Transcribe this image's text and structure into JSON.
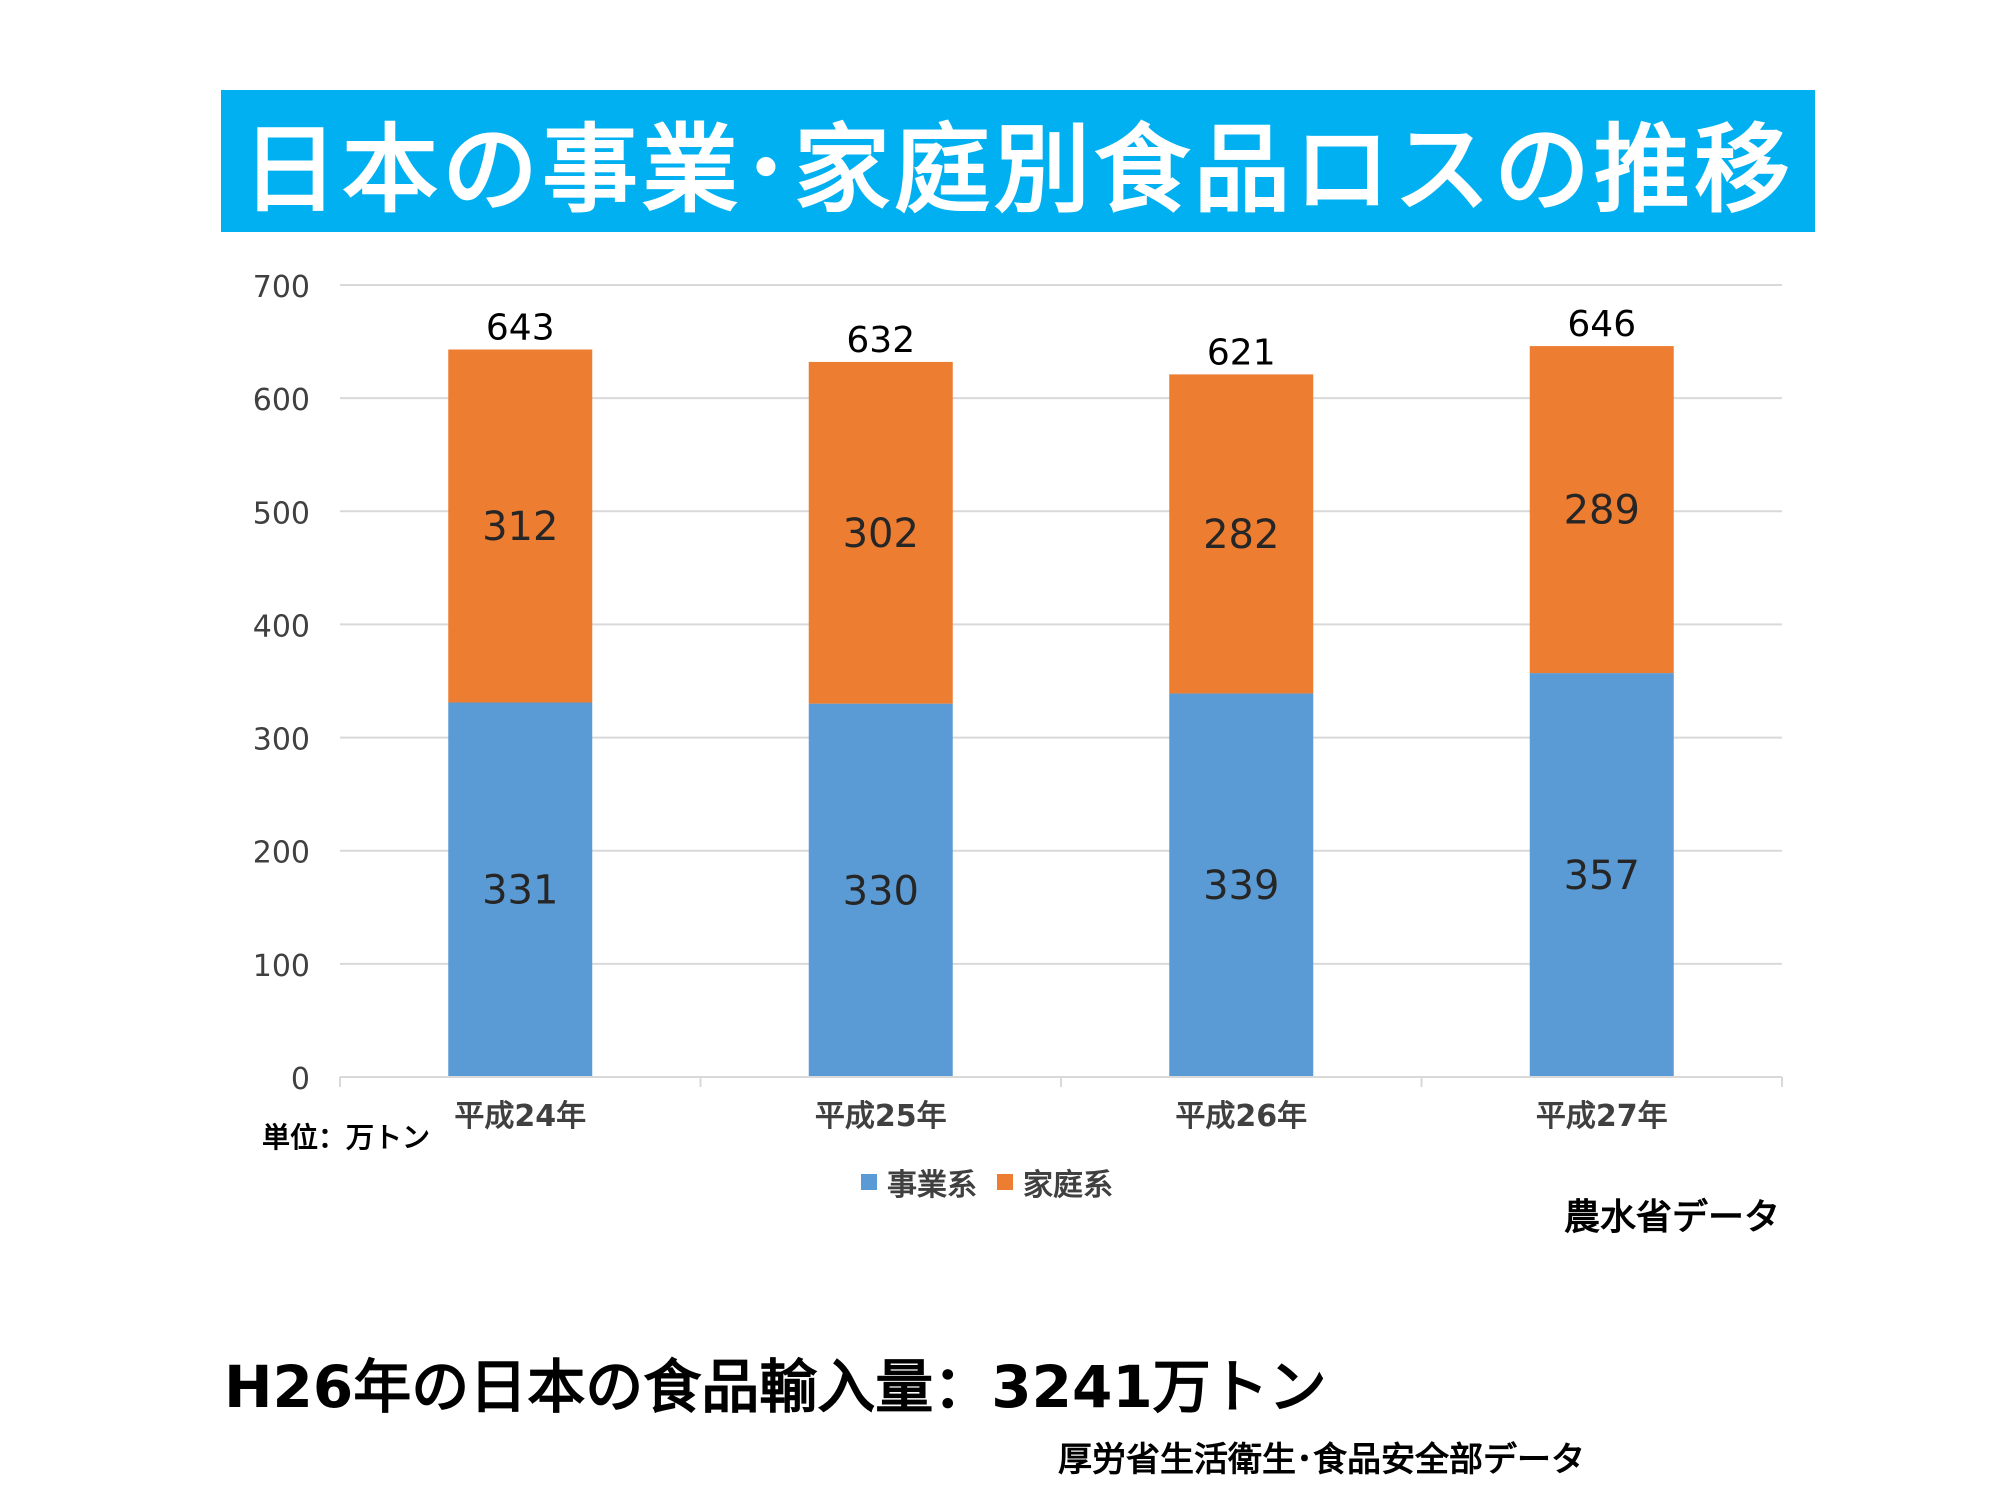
{
  "title": "日本の事業･家庭別食品ロスの推移",
  "colors": {
    "banner": "#00b0f0",
    "business": "#5b9bd5",
    "household": "#ed7d31",
    "grid": "#d9d9d9",
    "axis_text": "#404040"
  },
  "chart_data": {
    "type": "bar",
    "stacked": true,
    "categories": [
      "平成24年",
      "平成25年",
      "平成26年",
      "平成27年"
    ],
    "series": [
      {
        "name": "事業系",
        "values": [
          331,
          330,
          339,
          357
        ]
      },
      {
        "name": "家庭系",
        "values": [
          312,
          302,
          282,
          289
        ]
      }
    ],
    "totals": [
      643,
      632,
      621,
      646
    ],
    "y_ticks": [
      "0",
      "100",
      "200",
      "300",
      "400",
      "500",
      "600",
      "700"
    ],
    "ylim": [
      0,
      700
    ],
    "grid": true,
    "legend_position": "bottom"
  },
  "unit_label": "単位：万トン",
  "source_chart": "農水省データ",
  "import_statement": "H26年の日本の食品輸入量：3241万トン",
  "source_import": "厚労省生活衛生･食品安全部データ"
}
